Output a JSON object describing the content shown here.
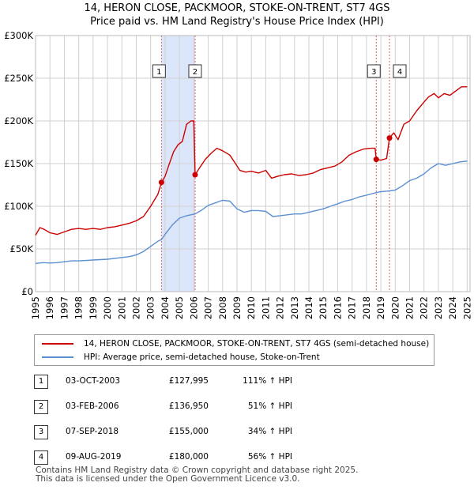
{
  "title_line1": "14, HERON CLOSE, PACKMOOR, STOKE-ON-TRENT, ST7 4GS",
  "title_line2": "Price paid vs. HM Land Registry's House Price Index (HPI)",
  "legend": {
    "property": "14, HERON CLOSE, PACKMOOR, STOKE-ON-TRENT, ST7 4GS (semi-detached house)",
    "hpi": "HPI: Average price, semi-detached house, Stoke-on-Trent"
  },
  "colors": {
    "property": "#cc0000",
    "hpi": "#5b8fd0",
    "marker_line": "#e06060",
    "shade": "#dce6fa"
  },
  "transactions": [
    {
      "num": "1",
      "date": "03-OCT-2003",
      "price": "£127,995",
      "hpi": "111% ↑ HPI"
    },
    {
      "num": "2",
      "date": "03-FEB-2006",
      "price": "£136,950",
      "hpi": "51% ↑ HPI"
    },
    {
      "num": "3",
      "date": "07-SEP-2018",
      "price": "£155,000",
      "hpi": "34% ↑ HPI"
    },
    {
      "num": "4",
      "date": "09-AUG-2019",
      "price": "£180,000",
      "hpi": "56% ↑ HPI"
    }
  ],
  "footer_line1": "Contains HM Land Registry data © Crown copyright and database right 2025.",
  "footer_line2": "This data is licensed under the Open Government Licence v3.0.",
  "chart_data": {
    "type": "line",
    "title": "14, HERON CLOSE, PACKMOOR, STOKE-ON-TRENT, ST7 4GS — Price paid vs. HM Land Registry's House Price Index (HPI)",
    "xlim": [
      1995,
      2025.2
    ],
    "ylim": [
      0,
      300000
    ],
    "x_ticks": [
      1995,
      1996,
      1997,
      1998,
      1999,
      2000,
      2001,
      2002,
      2003,
      2004,
      2005,
      2006,
      2007,
      2008,
      2009,
      2010,
      2011,
      2012,
      2013,
      2014,
      2015,
      2016,
      2017,
      2018,
      2019,
      2020,
      2021,
      2022,
      2023,
      2024,
      2025
    ],
    "y_ticks": [
      {
        "value": 0,
        "label": "£0"
      },
      {
        "value": 50000,
        "label": "£50K"
      },
      {
        "value": 100000,
        "label": "£100K"
      },
      {
        "value": 150000,
        "label": "£150K"
      },
      {
        "value": 200000,
        "label": "£200K"
      },
      {
        "value": 250000,
        "label": "£250K"
      },
      {
        "value": 300000,
        "label": "£300K"
      }
    ],
    "shaded_ranges": [
      [
        2003.75,
        2006.09
      ]
    ],
    "series": [
      {
        "name": "14, HERON CLOSE, PACKMOOR, STOKE-ON-TRENT, ST7 4GS (semi-detached house)",
        "points": [
          [
            1995.0,
            66000
          ],
          [
            1995.3,
            75000
          ],
          [
            1995.6,
            73000
          ],
          [
            1996.0,
            69000
          ],
          [
            1996.5,
            67000
          ],
          [
            1997.0,
            70000
          ],
          [
            1997.5,
            73000
          ],
          [
            1998.0,
            74000
          ],
          [
            1998.5,
            73000
          ],
          [
            1999.0,
            74000
          ],
          [
            1999.5,
            73000
          ],
          [
            2000.0,
            75000
          ],
          [
            2000.5,
            76000
          ],
          [
            2001.0,
            78000
          ],
          [
            2001.5,
            80000
          ],
          [
            2002.0,
            83000
          ],
          [
            2002.5,
            88000
          ],
          [
            2003.0,
            100000
          ],
          [
            2003.5,
            114000
          ],
          [
            2003.75,
            127995
          ],
          [
            2004.0,
            135000
          ],
          [
            2004.3,
            150000
          ],
          [
            2004.6,
            164000
          ],
          [
            2004.9,
            172000
          ],
          [
            2005.2,
            176000
          ],
          [
            2005.5,
            196000
          ],
          [
            2005.8,
            200000
          ],
          [
            2006.0,
            200000
          ],
          [
            2006.09,
            136950
          ],
          [
            2006.4,
            145000
          ],
          [
            2006.8,
            155000
          ],
          [
            2007.2,
            162000
          ],
          [
            2007.6,
            168000
          ],
          [
            2008.0,
            165000
          ],
          [
            2008.5,
            160000
          ],
          [
            2008.9,
            150000
          ],
          [
            2009.2,
            142000
          ],
          [
            2009.6,
            140000
          ],
          [
            2010.0,
            141000
          ],
          [
            2010.5,
            139000
          ],
          [
            2011.0,
            142000
          ],
          [
            2011.4,
            133000
          ],
          [
            2011.8,
            135000
          ],
          [
            2012.3,
            137000
          ],
          [
            2012.8,
            138000
          ],
          [
            2013.3,
            136000
          ],
          [
            2013.8,
            137000
          ],
          [
            2014.3,
            139000
          ],
          [
            2014.8,
            143000
          ],
          [
            2015.3,
            145000
          ],
          [
            2015.8,
            147000
          ],
          [
            2016.3,
            152000
          ],
          [
            2016.8,
            160000
          ],
          [
            2017.3,
            164000
          ],
          [
            2017.8,
            167000
          ],
          [
            2018.3,
            168000
          ],
          [
            2018.6,
            168000
          ],
          [
            2018.68,
            155000
          ],
          [
            2019.0,
            154000
          ],
          [
            2019.4,
            156000
          ],
          [
            2019.6,
            180000
          ],
          [
            2019.9,
            186000
          ],
          [
            2020.2,
            178000
          ],
          [
            2020.6,
            196000
          ],
          [
            2021.0,
            200000
          ],
          [
            2021.5,
            212000
          ],
          [
            2022.0,
            222000
          ],
          [
            2022.3,
            228000
          ],
          [
            2022.7,
            232000
          ],
          [
            2023.0,
            227000
          ],
          [
            2023.4,
            232000
          ],
          [
            2023.8,
            230000
          ],
          [
            2024.2,
            235000
          ],
          [
            2024.6,
            240000
          ],
          [
            2025.0,
            240000
          ]
        ]
      },
      {
        "name": "HPI: Average price, semi-detached house, Stoke-on-Trent",
        "points": [
          [
            1995.0,
            33000
          ],
          [
            1995.5,
            34000
          ],
          [
            1996.0,
            33500
          ],
          [
            1996.5,
            34000
          ],
          [
            1997.0,
            35000
          ],
          [
            1997.5,
            36000
          ],
          [
            1998.0,
            36000
          ],
          [
            1998.5,
            36500
          ],
          [
            1999.0,
            37000
          ],
          [
            1999.5,
            37500
          ],
          [
            2000.0,
            38000
          ],
          [
            2000.5,
            39000
          ],
          [
            2001.0,
            40000
          ],
          [
            2001.5,
            41000
          ],
          [
            2002.0,
            43000
          ],
          [
            2002.5,
            47000
          ],
          [
            2003.0,
            53000
          ],
          [
            2003.5,
            59000
          ],
          [
            2003.75,
            61000
          ],
          [
            2004.0,
            67000
          ],
          [
            2004.5,
            78000
          ],
          [
            2005.0,
            86000
          ],
          [
            2005.5,
            89000
          ],
          [
            2006.09,
            91000
          ],
          [
            2006.5,
            95000
          ],
          [
            2007.0,
            101000
          ],
          [
            2007.5,
            104000
          ],
          [
            2008.0,
            107000
          ],
          [
            2008.5,
            106000
          ],
          [
            2009.0,
            97000
          ],
          [
            2009.5,
            93000
          ],
          [
            2010.0,
            95000
          ],
          [
            2010.5,
            95000
          ],
          [
            2011.0,
            94000
          ],
          [
            2011.5,
            88000
          ],
          [
            2012.0,
            89000
          ],
          [
            2012.5,
            90000
          ],
          [
            2013.0,
            91000
          ],
          [
            2013.5,
            91000
          ],
          [
            2014.0,
            93000
          ],
          [
            2014.5,
            95000
          ],
          [
            2015.0,
            97000
          ],
          [
            2015.5,
            100000
          ],
          [
            2016.0,
            103000
          ],
          [
            2016.5,
            106000
          ],
          [
            2017.0,
            108000
          ],
          [
            2017.5,
            111000
          ],
          [
            2018.0,
            113000
          ],
          [
            2018.68,
            116000
          ],
          [
            2019.0,
            117000
          ],
          [
            2019.6,
            118000
          ],
          [
            2020.0,
            119000
          ],
          [
            2020.5,
            124000
          ],
          [
            2021.0,
            130000
          ],
          [
            2021.5,
            133000
          ],
          [
            2022.0,
            138000
          ],
          [
            2022.5,
            145000
          ],
          [
            2023.0,
            150000
          ],
          [
            2023.5,
            148000
          ],
          [
            2024.0,
            150000
          ],
          [
            2024.5,
            152000
          ],
          [
            2025.0,
            153000
          ]
        ]
      }
    ],
    "sales": [
      {
        "label": "1",
        "x": 2003.75,
        "y": 127995
      },
      {
        "label": "2",
        "x": 2006.09,
        "y": 136950
      },
      {
        "label": "3",
        "x": 2018.68,
        "y": 155000
      },
      {
        "label": "4",
        "x": 2019.6,
        "y": 180000
      }
    ]
  }
}
